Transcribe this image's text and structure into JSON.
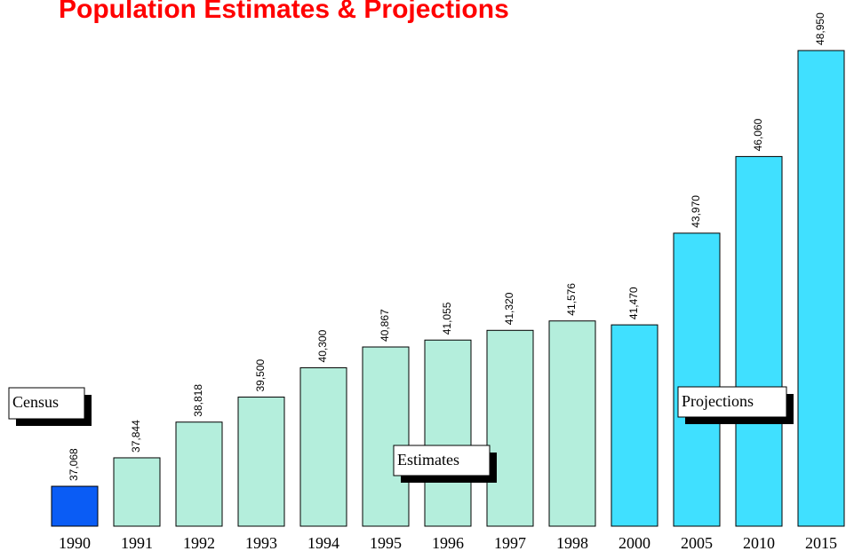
{
  "chart_data": {
    "type": "bar",
    "title": "Population Estimates & Projections",
    "categories": [
      "1990",
      "1991",
      "1992",
      "1993",
      "1994",
      "1995",
      "1996",
      "1997",
      "1998",
      "2000",
      "2005",
      "2010",
      "2015"
    ],
    "values": [
      37068,
      37844,
      38818,
      39500,
      40300,
      40867,
      41055,
      41320,
      41576,
      41470,
      43970,
      46060,
      48950
    ],
    "value_labels": [
      "37,068",
      "37,844",
      "38,818",
      "39,500",
      "40,300",
      "40,867",
      "41,055",
      "41,320",
      "41,576",
      "41,470",
      "43,970",
      "46,060",
      "48,950"
    ],
    "colors": [
      "#0a5cf5",
      "#b4eedc",
      "#b4eedc",
      "#b4eedc",
      "#b4eedc",
      "#b4eedc",
      "#b4eedc",
      "#b4eedc",
      "#b4eedc",
      "#40e0ff",
      "#40e0ff",
      "#40e0ff",
      "#40e0ff"
    ],
    "ylim": [
      35980,
      49300
    ],
    "annotations": [
      "Census",
      "Estimates",
      "Projections"
    ]
  }
}
